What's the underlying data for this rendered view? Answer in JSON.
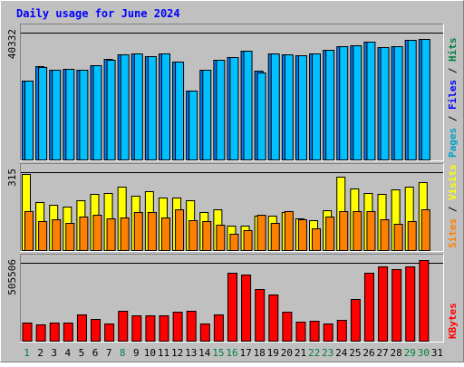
{
  "chart_data": {
    "type": "bar",
    "title": "Daily usage for June 2024",
    "categories": [
      "1",
      "2",
      "3",
      "4",
      "5",
      "6",
      "7",
      "8",
      "9",
      "10",
      "11",
      "12",
      "13",
      "14",
      "15",
      "16",
      "17",
      "18",
      "19",
      "20",
      "21",
      "22",
      "23",
      "24",
      "25",
      "26",
      "27",
      "28",
      "29",
      "30",
      "31"
    ],
    "weekend_days": [
      1,
      8,
      15,
      16,
      22,
      23,
      29,
      30
    ],
    "panels": [
      {
        "id": "hits",
        "max_label": "40332",
        "ymax": 40332,
        "legend": [
          {
            "label": "Pages",
            "color": "#00a0c8"
          },
          {
            "label": "Files",
            "color": "#0000ff"
          },
          {
            "label": "Hits",
            "color": "#008040"
          }
        ],
        "series": [
          {
            "name": "Files",
            "color": "#0080ff",
            "values": [
              24700,
              29300,
              28100,
              28500,
              28100,
              29600,
              31500,
              33000,
              33100,
              32500,
              33100,
              30800,
              21500,
              28100,
              31300,
              32000,
              34100,
              27700,
              33100,
              33000,
              32700,
              33200,
              34500,
              35400,
              35700,
              36900,
              35100,
              35600,
              37500,
              37800,
              0
            ]
          },
          {
            "name": "Hits",
            "color": "#00c0ff",
            "values": [
              24700,
              29100,
              28100,
              28500,
              28100,
              29600,
              31300,
              33000,
              33100,
              32500,
              33100,
              30800,
              21500,
              28100,
              31300,
              32000,
              34100,
              27400,
              33100,
              33000,
              32700,
              33200,
              34500,
              35400,
              35700,
              36900,
              35100,
              35600,
              37500,
              37800,
              0
            ]
          }
        ]
      },
      {
        "id": "sites",
        "max_label": "315",
        "ymax": 315,
        "legend": [
          {
            "label": "Sites",
            "color": "#ff8000"
          },
          {
            "label": "Visits",
            "color": "#ffff00"
          }
        ],
        "series": [
          {
            "name": "Visits",
            "color": "#ffff00",
            "values": [
              300,
              188,
              178,
              172,
              198,
              222,
              226,
              252,
              216,
              232,
              206,
              206,
              196,
              150,
              162,
              96,
              97,
              135,
              136,
              150,
              125,
              117,
              157,
              290,
              244,
              226,
              222,
              240,
              250,
              270,
              0
            ]
          },
          {
            "name": "Sites",
            "color": "#ff8000",
            "values": [
              155,
              115,
              122,
              108,
              132,
              140,
              126,
              128,
              150,
              150,
              128,
              162,
              118,
              115,
              100,
              65,
              80,
              138,
              108,
              155,
              122,
              85,
              132,
              155,
              155,
              155,
              122,
              105,
              115,
              160,
              0
            ]
          }
        ]
      },
      {
        "id": "kbytes",
        "max_label": "505506",
        "ymax": 505506,
        "legend": [
          {
            "label": "KBytes",
            "color": "#ff0000"
          }
        ],
        "series": [
          {
            "name": "KBytes",
            "color": "#ff0000",
            "values": [
              117000,
              102000,
              117000,
              117000,
              168000,
              136000,
              111000,
              191000,
              160000,
              158000,
              162000,
              186000,
              191000,
              110000,
              165000,
              428000,
              420000,
              327000,
              295000,
              186000,
              121000,
              126000,
              107000,
              130000,
              263000,
              428000,
              470000,
              455000,
              470000,
              510000,
              0
            ]
          }
        ]
      }
    ]
  }
}
